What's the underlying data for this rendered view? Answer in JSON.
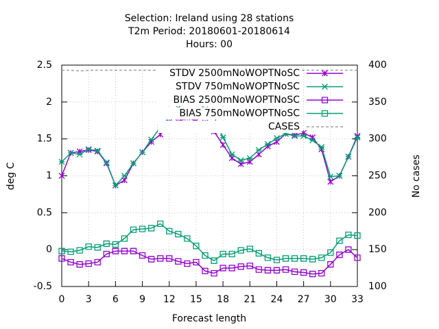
{
  "chart_data": {
    "type": "line",
    "title": [
      "Selection: Ireland using    28 stations",
      "T2m   Period: 20180601-20180614",
      "Hours:  00"
    ],
    "xlabel": "Forecast length",
    "ylabel": "deg C",
    "y2label": "No cases",
    "x": [
      0,
      1,
      2,
      3,
      4,
      5,
      6,
      7,
      8,
      9,
      10,
      11,
      12,
      13,
      14,
      15,
      16,
      17,
      18,
      19,
      20,
      21,
      22,
      23,
      24,
      25,
      26,
      27,
      28,
      29,
      30,
      31,
      32,
      33
    ],
    "xlim": [
      0,
      33
    ],
    "xticks": [
      0,
      3,
      6,
      9,
      12,
      15,
      18,
      21,
      24,
      27,
      30,
      33
    ],
    "ylim": [
      -0.5,
      2.5
    ],
    "yticks": [
      -0.5,
      0,
      0.5,
      1,
      1.5,
      2,
      2.5
    ],
    "y2lim": [
      100,
      400
    ],
    "y2ticks": [
      100,
      150,
      200,
      250,
      300,
      350,
      400
    ],
    "grid": true,
    "legend": "upper right",
    "series": [
      {
        "name": "STDV 2500mNoWOPTNoSC",
        "color": "#9400d3",
        "marker": "x",
        "values": [
          1.0,
          1.31,
          1.33,
          1.35,
          1.33,
          1.17,
          0.87,
          0.94,
          1.17,
          1.32,
          1.46,
          1.56,
          1.73,
          1.73,
          1.79,
          1.74,
          1.72,
          1.6,
          1.42,
          1.24,
          1.16,
          1.19,
          1.29,
          1.4,
          1.46,
          1.57,
          1.55,
          1.58,
          1.52,
          1.36,
          0.92,
          1.0,
          1.26,
          1.54
        ]
      },
      {
        "name": "STDV 750mNoWOPTNoSC",
        "color": "#009e73",
        "marker": "star",
        "values": [
          1.19,
          1.31,
          1.29,
          1.36,
          1.34,
          1.18,
          0.87,
          1.0,
          1.17,
          1.32,
          1.49,
          1.66,
          1.79,
          1.92,
          2.04,
          2.05,
          1.9,
          1.8,
          1.52,
          1.29,
          1.21,
          1.24,
          1.35,
          1.43,
          1.51,
          1.57,
          1.54,
          1.54,
          1.48,
          1.39,
          0.99,
          1.0,
          1.26,
          1.52
        ]
      },
      {
        "name": "BIAS 2500mNoWOPTNoSC",
        "color": "#9400d3",
        "marker": "square",
        "values": [
          -0.12,
          -0.17,
          -0.2,
          -0.19,
          -0.17,
          -0.06,
          -0.02,
          -0.02,
          -0.02,
          -0.08,
          -0.13,
          -0.12,
          -0.12,
          -0.16,
          -0.19,
          -0.17,
          -0.29,
          -0.32,
          -0.25,
          -0.25,
          -0.23,
          -0.22,
          -0.27,
          -0.28,
          -0.28,
          -0.27,
          -0.3,
          -0.31,
          -0.33,
          -0.32,
          -0.2,
          -0.07,
          0.0,
          -0.11
        ]
      },
      {
        "name": "BIAS 750mNoWOPTNoSC",
        "color": "#009e73",
        "marker": "square",
        "values": [
          -0.02,
          -0.03,
          -0.01,
          0.04,
          0.03,
          0.08,
          0.07,
          0.15,
          0.27,
          0.28,
          0.29,
          0.35,
          0.25,
          0.21,
          0.15,
          0.05,
          -0.08,
          -0.15,
          -0.06,
          -0.06,
          -0.01,
          0.01,
          -0.05,
          -0.11,
          -0.14,
          -0.12,
          -0.12,
          -0.12,
          -0.13,
          -0.11,
          -0.04,
          0.12,
          0.2,
          0.19
        ]
      },
      {
        "name": "CASES",
        "color": "#a0a0a0",
        "marker": "none",
        "dashed": true,
        "axis": "y2",
        "values": [
          393,
          393,
          392,
          393,
          393,
          393,
          393,
          393,
          393,
          393,
          393,
          393,
          393,
          393,
          393,
          393,
          393,
          393,
          393,
          393,
          393,
          393,
          393,
          393,
          393,
          393,
          393,
          393,
          393,
          393,
          393,
          393,
          393,
          393
        ]
      }
    ]
  }
}
